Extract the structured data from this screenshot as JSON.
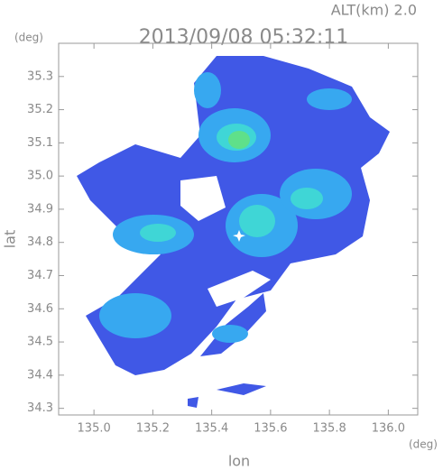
{
  "chart_data": {
    "type": "map",
    "title": "ALT(km) 2.0",
    "subtitle": "2013/09/08 05:32:11",
    "x_label": "lon",
    "y_label": "lat",
    "x_unit": "(deg)",
    "y_unit": "(deg)",
    "xlim": [
      134.88,
      136.1
    ],
    "ylim": [
      34.28,
      35.4
    ],
    "xticks": [
      {
        "value": 135.0,
        "label": "135.0"
      },
      135.2,
      135.4,
      135.6,
      135.8,
      {
        "value": 136.0,
        "label": "136.0"
      }
    ],
    "yticks": [
      34.3,
      34.4,
      34.5,
      34.6,
      34.7,
      34.8,
      34.9,
      {
        "value": 35.0,
        "label": "35.0"
      },
      35.1,
      35.2,
      35.3
    ]
  }
}
